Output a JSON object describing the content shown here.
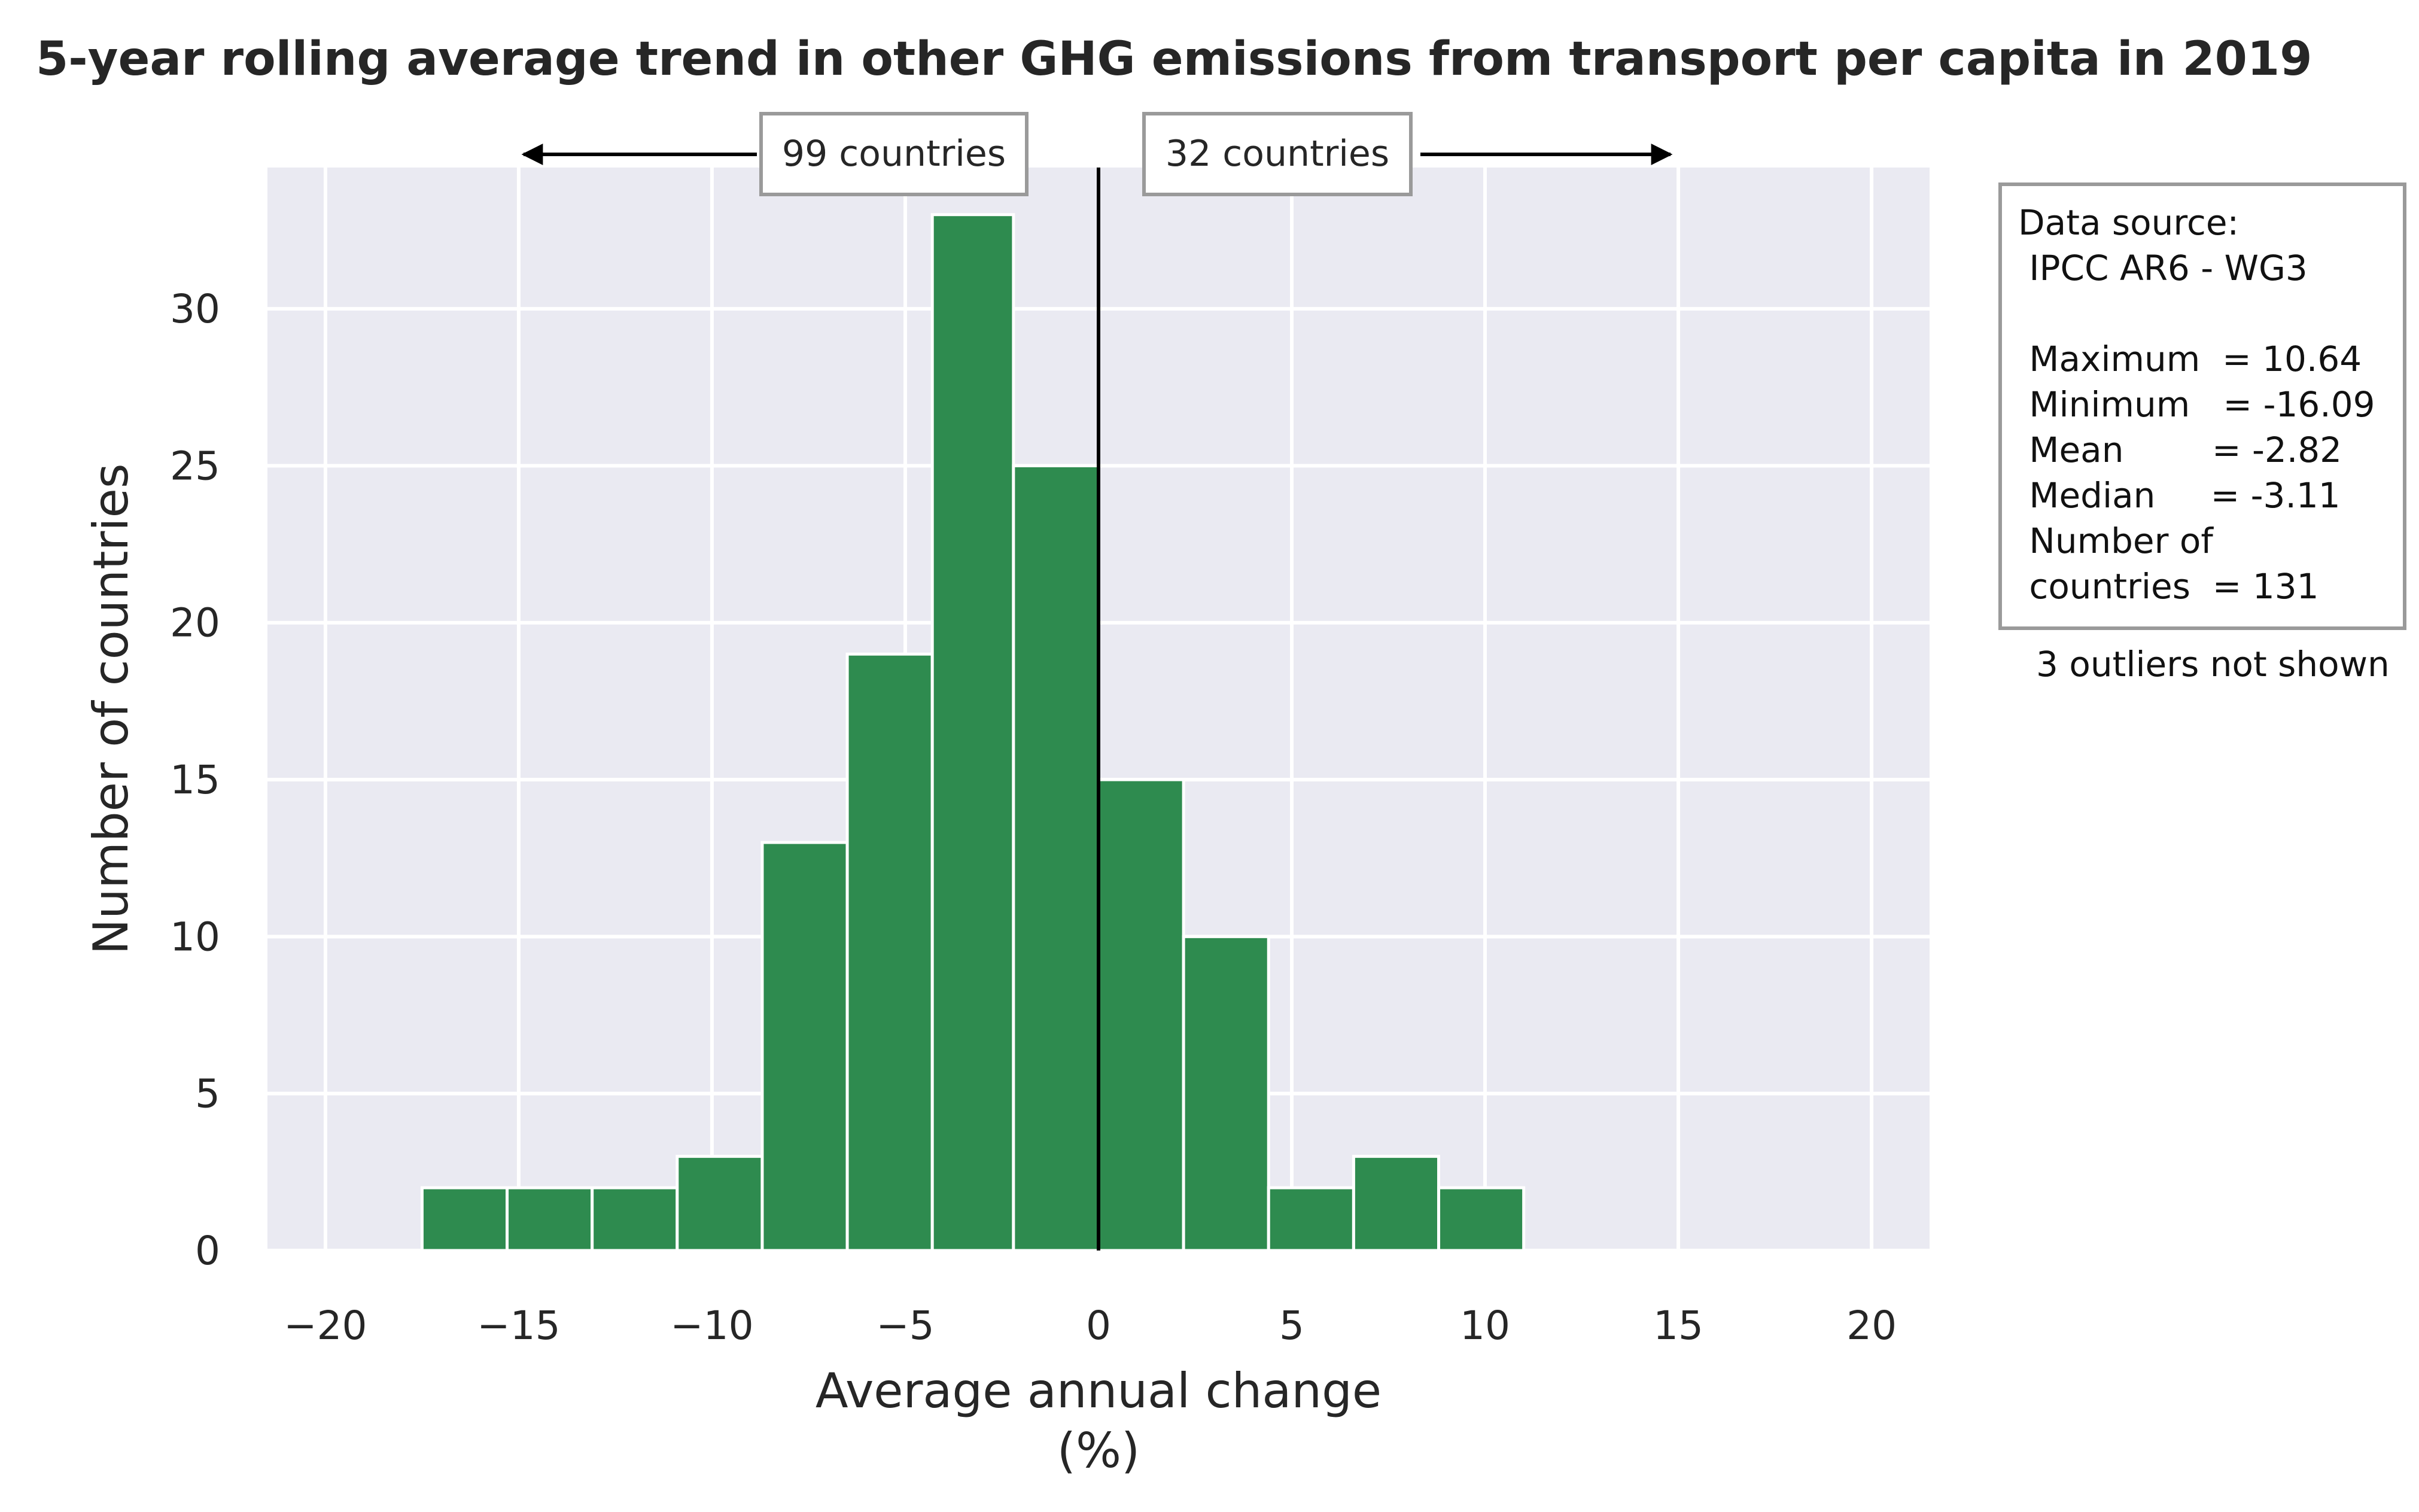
{
  "chart_data": {
    "type": "bar",
    "title": "5-year rolling average trend in other GHG emissions from transport per capita in 2019",
    "xlabel_line1": "Average annual change",
    "xlabel_line2": "(%)",
    "ylabel": "Number of countries",
    "xlim": [
      -21.5,
      21.5
    ],
    "ylim": [
      0,
      34.5
    ],
    "xticks": [
      -20,
      -15,
      -10,
      -5,
      0,
      5,
      10,
      15,
      20
    ],
    "xtick_labels": [
      "−20",
      "−15",
      "−10",
      "−5",
      "0",
      "5",
      "10",
      "15",
      "20"
    ],
    "yticks": [
      0,
      5,
      10,
      15,
      20,
      25,
      30
    ],
    "ytick_labels": [
      "0",
      "5",
      "10",
      "15",
      "20",
      "25",
      "30"
    ],
    "grid": true,
    "bar_color": "#2e8b4f",
    "plot_background": "#eaeaf2",
    "bins": [
      {
        "x0": -17.5,
        "x1": -15.3,
        "count": 2
      },
      {
        "x0": -15.3,
        "x1": -13.1,
        "count": 2
      },
      {
        "x0": -13.1,
        "x1": -10.9,
        "count": 2
      },
      {
        "x0": -10.9,
        "x1": -8.7,
        "count": 3
      },
      {
        "x0": -8.7,
        "x1": -6.5,
        "count": 13
      },
      {
        "x0": -6.5,
        "x1": -4.3,
        "count": 19
      },
      {
        "x0": -4.3,
        "x1": -2.2,
        "count": 33
      },
      {
        "x0": -2.2,
        "x1": 0.0,
        "count": 25
      },
      {
        "x0": 0.0,
        "x1": 2.2,
        "count": 15
      },
      {
        "x0": 2.2,
        "x1": 4.4,
        "count": 10
      },
      {
        "x0": 4.4,
        "x1": 6.6,
        "count": 2
      },
      {
        "x0": 6.6,
        "x1": 8.8,
        "count": 3
      },
      {
        "x0": 8.8,
        "x1": 11.0,
        "count": 2
      }
    ],
    "zero_line": 0,
    "left_count_label": "99 countries",
    "right_count_label": "32 countries",
    "stats_box": {
      "lines": [
        "Data source:",
        " IPCC AR6 - WG3",
        "",
        " Maximum  = 10.64",
        " Minimum   = -16.09",
        " Mean        = -2.82",
        " Median     = -3.11",
        " Number of",
        " countries  = 131"
      ],
      "footnote": "3 outliers not shown"
    }
  }
}
